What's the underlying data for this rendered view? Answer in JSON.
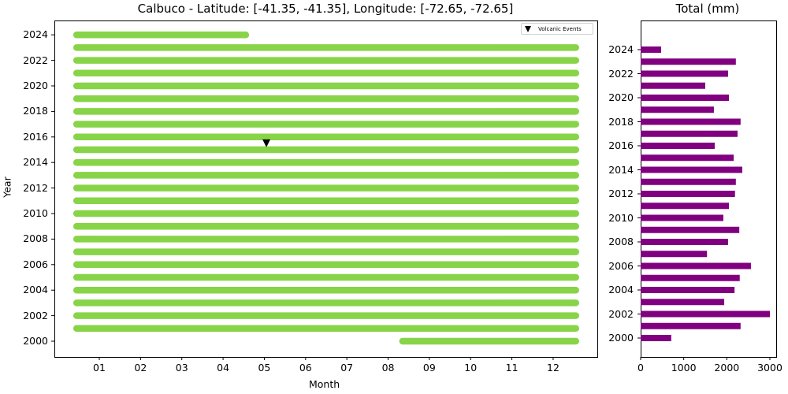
{
  "chart_data": [
    {
      "type": "bar",
      "subtype": "timeline-range",
      "title": "Calbuco - Latitude: [-41.35, -41.35], Longitude: [-72.65, -72.65]",
      "xlabel": "Month",
      "ylabel": "Year",
      "xticks": [
        "01",
        "02",
        "03",
        "04",
        "05",
        "06",
        "07",
        "08",
        "09",
        "10",
        "11",
        "12"
      ],
      "yticks": [
        "2000",
        "2002",
        "2004",
        "2006",
        "2008",
        "2010",
        "2012",
        "2014",
        "2016",
        "2018",
        "2020",
        "2022",
        "2024"
      ],
      "xlim": [
        0,
        13.2
      ],
      "ylim": [
        1999.0,
        2025.1
      ],
      "bar_color": "#88d448",
      "ranges": [
        {
          "year": 2000,
          "start_month": 8.35,
          "end_month": 12.55
        },
        {
          "year": 2001,
          "start_month": 0.45,
          "end_month": 12.55
        },
        {
          "year": 2002,
          "start_month": 0.45,
          "end_month": 12.55
        },
        {
          "year": 2003,
          "start_month": 0.45,
          "end_month": 12.55
        },
        {
          "year": 2004,
          "start_month": 0.45,
          "end_month": 12.55
        },
        {
          "year": 2005,
          "start_month": 0.45,
          "end_month": 12.55
        },
        {
          "year": 2006,
          "start_month": 0.45,
          "end_month": 12.55
        },
        {
          "year": 2007,
          "start_month": 0.45,
          "end_month": 12.55
        },
        {
          "year": 2008,
          "start_month": 0.45,
          "end_month": 12.55
        },
        {
          "year": 2009,
          "start_month": 0.45,
          "end_month": 12.55
        },
        {
          "year": 2010,
          "start_month": 0.45,
          "end_month": 12.55
        },
        {
          "year": 2011,
          "start_month": 0.45,
          "end_month": 12.55
        },
        {
          "year": 2012,
          "start_month": 0.45,
          "end_month": 12.55
        },
        {
          "year": 2013,
          "start_month": 0.45,
          "end_month": 12.55
        },
        {
          "year": 2014,
          "start_month": 0.45,
          "end_month": 12.55
        },
        {
          "year": 2015,
          "start_month": 0.45,
          "end_month": 12.55
        },
        {
          "year": 2016,
          "start_month": 0.45,
          "end_month": 12.55
        },
        {
          "year": 2017,
          "start_month": 0.45,
          "end_month": 12.55
        },
        {
          "year": 2018,
          "start_month": 0.45,
          "end_month": 12.55
        },
        {
          "year": 2019,
          "start_month": 0.45,
          "end_month": 12.55
        },
        {
          "year": 2020,
          "start_month": 0.45,
          "end_month": 12.55
        },
        {
          "year": 2021,
          "start_month": 0.45,
          "end_month": 12.55
        },
        {
          "year": 2022,
          "start_month": 0.45,
          "end_month": 12.55
        },
        {
          "year": 2023,
          "start_month": 0.45,
          "end_month": 12.55
        },
        {
          "year": 2024,
          "start_month": 0.45,
          "end_month": 4.55
        }
      ],
      "events": [
        {
          "label": "Volcanic Events",
          "year": 2015.5,
          "month": 5.05,
          "marker": "triangle-down",
          "color": "#000000"
        }
      ],
      "legend": {
        "entries": [
          "Volcanic Events"
        ],
        "position": "upper right"
      },
      "grid": false
    },
    {
      "type": "bar",
      "orientation": "horizontal",
      "title": "Total (mm)",
      "xlabel": "",
      "ylabel": "",
      "categories": [
        2000,
        2001,
        2002,
        2003,
        2004,
        2005,
        2006,
        2007,
        2008,
        2009,
        2010,
        2011,
        2012,
        2013,
        2014,
        2015,
        2016,
        2017,
        2018,
        2019,
        2020,
        2021,
        2022,
        2023,
        2024
      ],
      "values": [
        710,
        2320,
        3000,
        1940,
        2180,
        2300,
        2560,
        1540,
        2030,
        2290,
        1920,
        2050,
        2190,
        2210,
        2360,
        2160,
        1720,
        2250,
        2320,
        1700,
        2050,
        1500,
        2030,
        2210,
        475
      ],
      "xticks": [
        "0",
        "1000",
        "2000",
        "3000"
      ],
      "yticks": [
        "2000",
        "2002",
        "2004",
        "2006",
        "2008",
        "2010",
        "2012",
        "2014",
        "2016",
        "2018",
        "2020",
        "2022",
        "2024"
      ],
      "xlim": [
        0,
        3150
      ],
      "ylim": [
        1998.4,
        2025.3
      ],
      "bar_color": "#800080",
      "grid": false
    }
  ],
  "labels": {
    "left_title": "Calbuco - Latitude: [-41.35, -41.35], Longitude: [-72.65, -72.65]",
    "right_title": "Total (mm)",
    "xlabel": "Month",
    "ylabel": "Year",
    "legend_label": "Volcanic Events"
  }
}
